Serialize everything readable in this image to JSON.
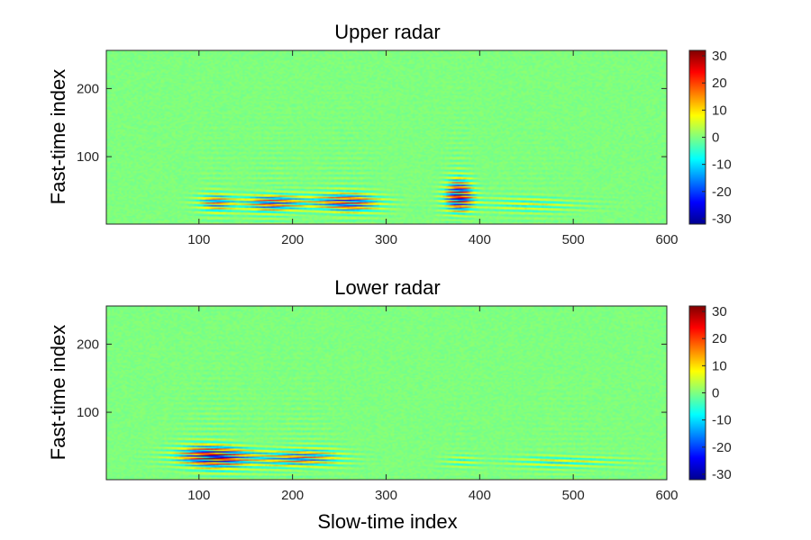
{
  "chart_data": [
    {
      "type": "heatmap",
      "title": "Upper radar",
      "xlabel": "",
      "ylabel": "Fast-time index",
      "xlim": [
        1,
        600
      ],
      "ylim": [
        1,
        256
      ],
      "xticks": [
        100,
        200,
        300,
        400,
        500,
        600
      ],
      "yticks": [
        100,
        200
      ],
      "colormap": "jet",
      "clim": [
        -32,
        32
      ],
      "colorbar_ticks": [
        -30,
        -20,
        -10,
        0,
        10,
        20,
        30
      ],
      "activity_regions": [
        {
          "x": [
            95,
            140
          ],
          "y": [
            15,
            50
          ],
          "amplitude": 18
        },
        {
          "x": [
            145,
            215
          ],
          "y": [
            15,
            50
          ],
          "amplitude": 26
        },
        {
          "x": [
            215,
            300
          ],
          "y": [
            15,
            50
          ],
          "amplitude": 24
        },
        {
          "x": [
            360,
            395
          ],
          "y": [
            10,
            70
          ],
          "amplitude": 32
        },
        {
          "x": [
            395,
            520
          ],
          "y": [
            15,
            45
          ],
          "amplitude": 10
        }
      ]
    },
    {
      "type": "heatmap",
      "title": "Lower radar",
      "xlabel": "Slow-time index",
      "ylabel": "Fast-time index",
      "xlim": [
        1,
        600
      ],
      "ylim": [
        1,
        256
      ],
      "xticks": [
        100,
        200,
        300,
        400,
        500,
        600
      ],
      "yticks": [
        100,
        200
      ],
      "colormap": "jet",
      "clim": [
        -32,
        32
      ],
      "colorbar_ticks": [
        -30,
        -20,
        -10,
        0,
        10,
        20,
        30
      ],
      "activity_regions": [
        {
          "x": [
            70,
            160
          ],
          "y": [
            15,
            55
          ],
          "amplitude": 30
        },
        {
          "x": [
            160,
            255
          ],
          "y": [
            15,
            50
          ],
          "amplitude": 24
        },
        {
          "x": [
            360,
            400
          ],
          "y": [
            15,
            40
          ],
          "amplitude": 10
        },
        {
          "x": [
            430,
            560
          ],
          "y": [
            15,
            40
          ],
          "amplitude": 12
        }
      ]
    }
  ]
}
